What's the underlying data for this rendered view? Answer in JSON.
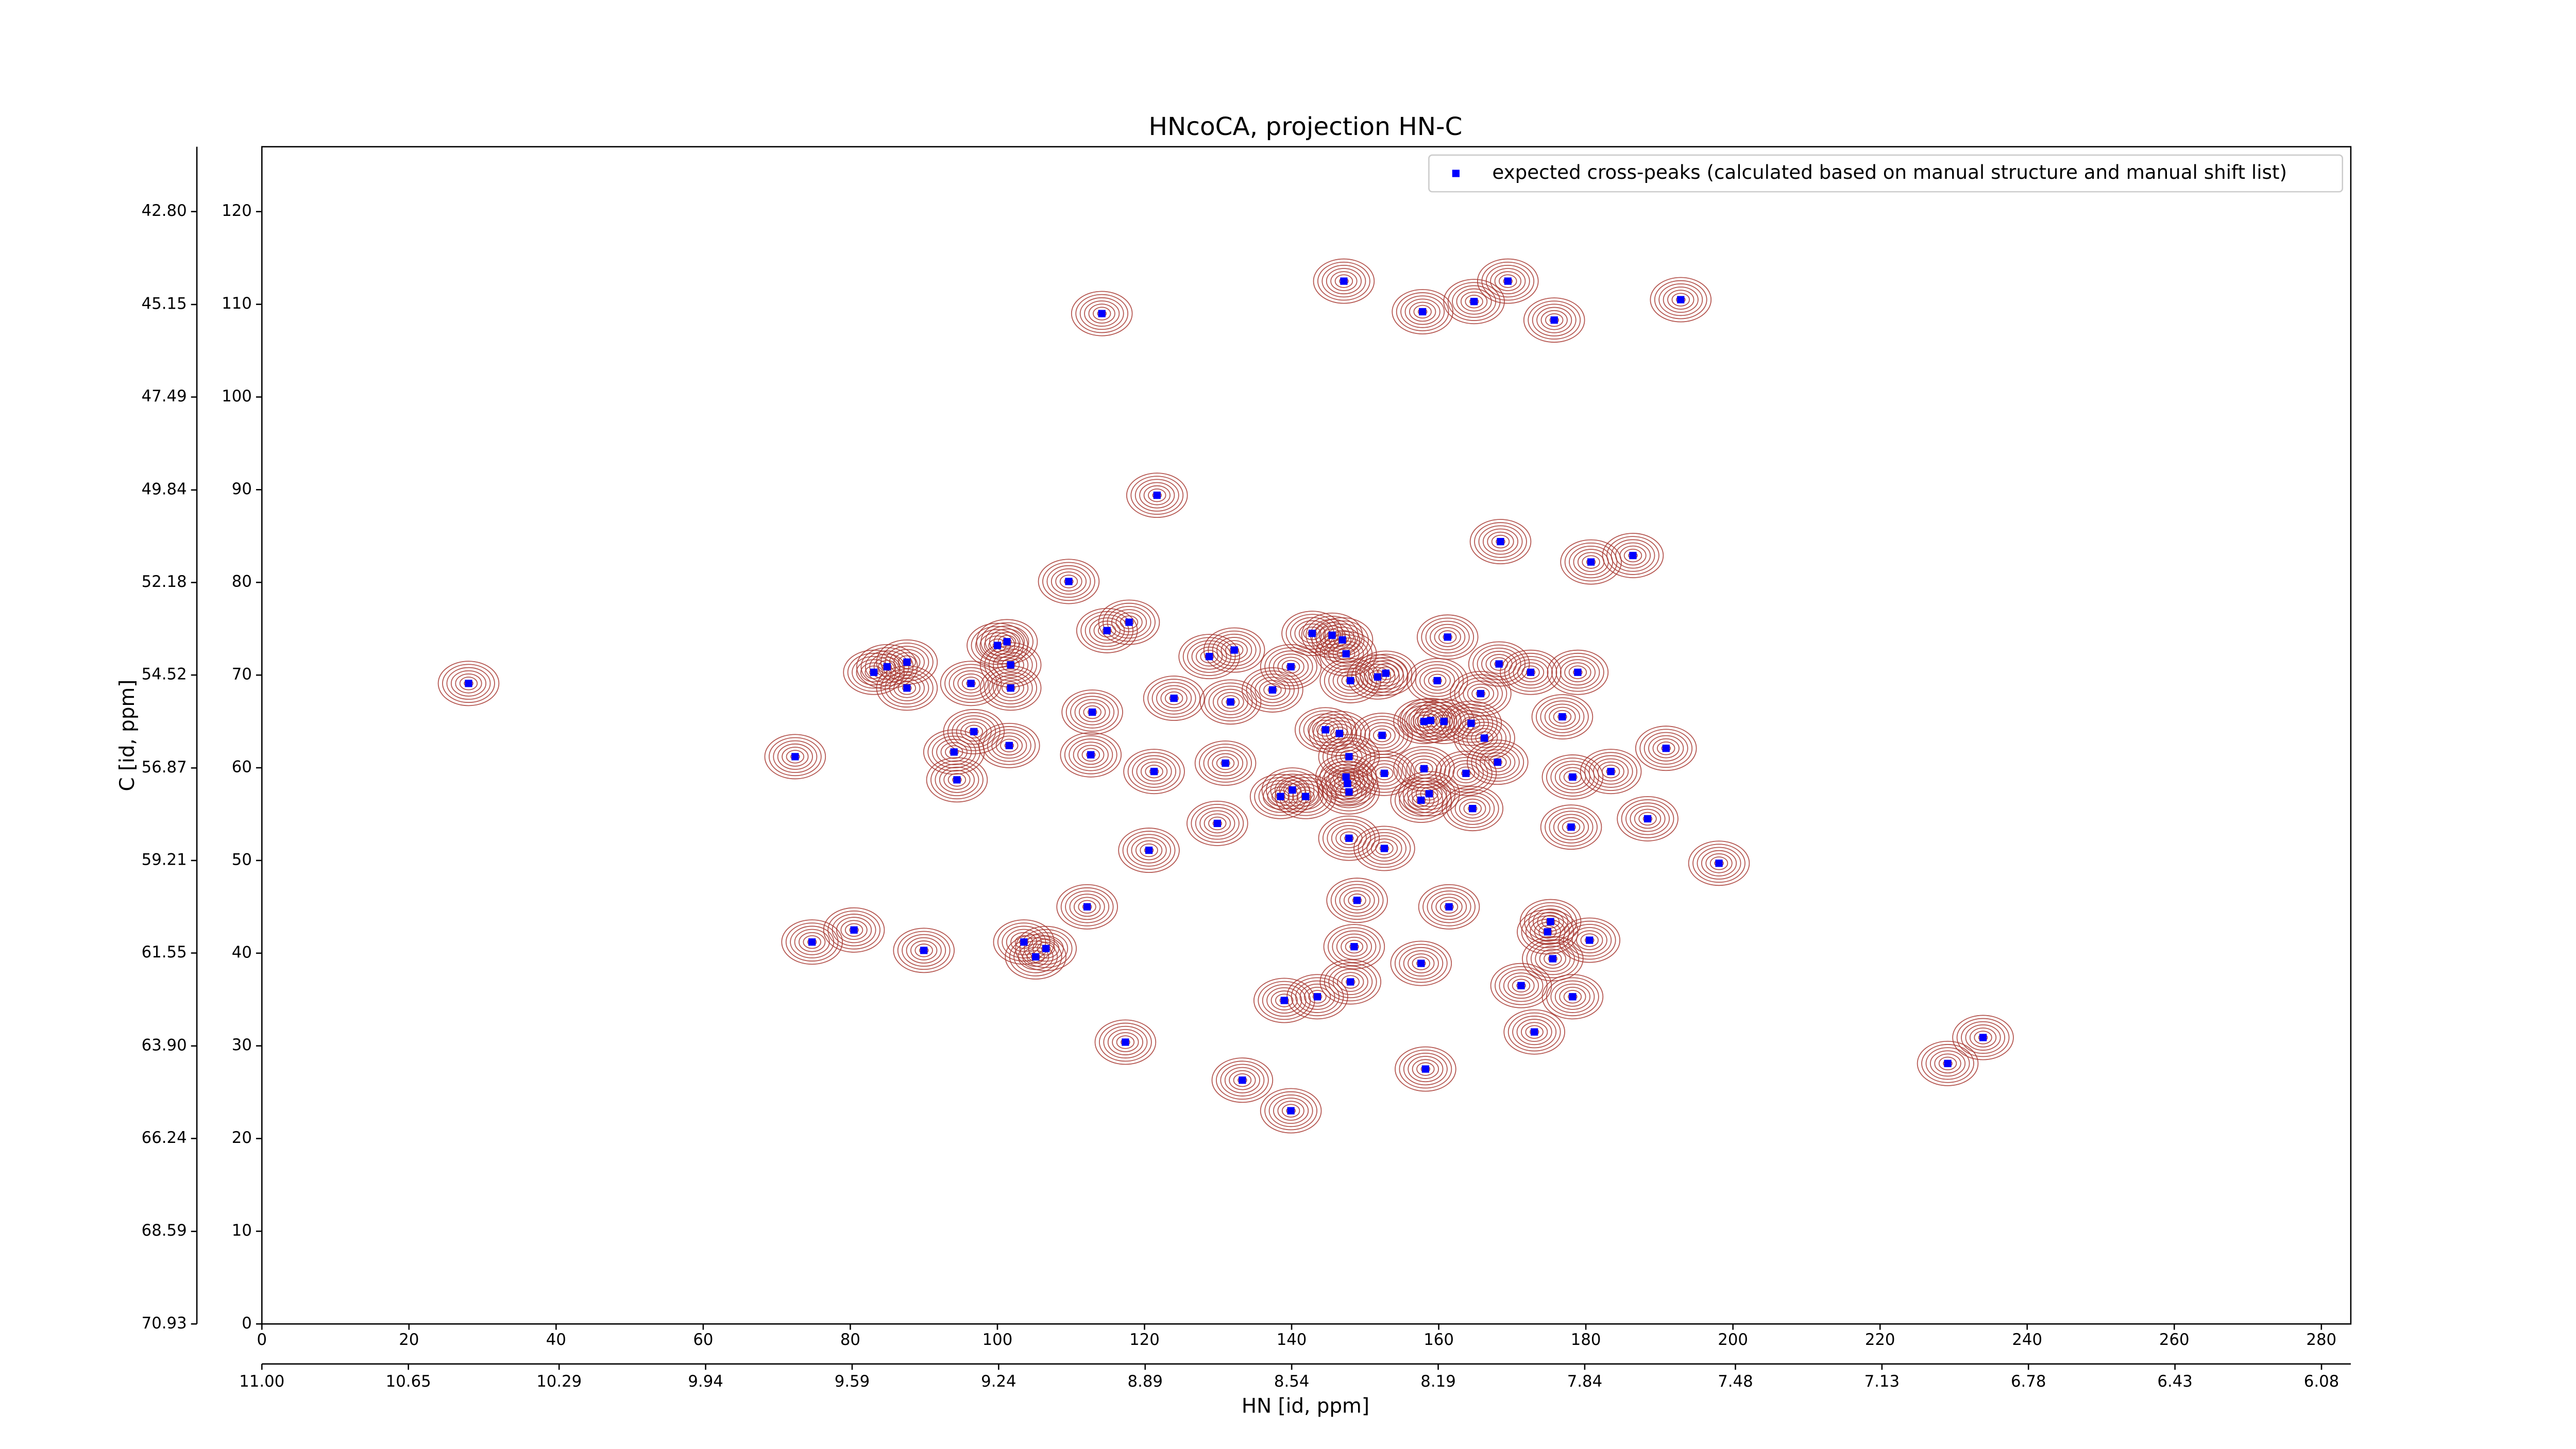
{
  "chart_data": {
    "type": "scatter",
    "title": "HNcoCA, projection HN-C",
    "xlabel": "HN [id, ppm]",
    "ylabel": "C [id, ppm]",
    "xlim": [
      0,
      284
    ],
    "ylim": [
      0,
      127
    ],
    "xticks": [
      0,
      20,
      40,
      60,
      80,
      100,
      120,
      140,
      160,
      180,
      200,
      220,
      240,
      260,
      280
    ],
    "yticks": [
      0,
      10,
      20,
      30,
      40,
      50,
      60,
      70,
      80,
      90,
      100,
      110,
      120
    ],
    "x2lim": [
      11.0,
      6.01
    ],
    "x2ticks": [
      {
        "value": 11,
        "label": "11.00"
      },
      10.65,
      10.29,
      9.94,
      9.59,
      9.24,
      8.89,
      8.54,
      8.19,
      7.84,
      7.48,
      7.13,
      6.78,
      6.43,
      6.08
    ],
    "y2lim": [
      70.93,
      41.16
    ],
    "y2ticks": [
      {
        "value": 42.8,
        "label": "42.80"
      },
      45.15,
      47.49,
      49.84,
      52.18,
      54.52,
      56.87,
      59.21,
      61.55,
      {
        "value": 63.9,
        "label": "63.90"
      },
      66.24,
      68.59,
      70.93
    ],
    "legend": "upper right",
    "contour_color": "#a83a32",
    "series": [
      {
        "name": "expected cross-peaks (calculated based on manual structure and manual shift list)",
        "color": "#0000ff",
        "x": [
          28.1,
          72.5,
          74.8,
          80.5,
          90.0,
          103.6,
          105.2,
          106.6,
          112.2,
          109.7,
          114.2,
          114.9,
          117.9,
          121.7,
          101.3,
          100.0,
          101.8,
          101.8,
          83.2,
          85.0,
          87.7,
          87.7,
          96.4,
          101.6,
          96.8,
          94.1,
          94.5,
          112.9,
          112.7,
          121.3,
          124.0,
          128.8,
          132.2,
          131.7,
          131.0,
          129.9,
          120.6,
          117.4,
          133.3,
          139.9,
          139.0,
          143.5,
          148.0,
          148.5,
          148.9,
          147.8,
          147.8,
          147.4,
          147.6,
          147.8,
          146.5,
          144.6,
          141.9,
          140.1,
          138.5,
          137.4,
          139.9,
          142.8,
          145.5,
          146.9,
          147.4,
          148.0,
          151.7,
          152.8,
          152.3,
          152.6,
          152.6,
          158.0,
          157.6,
          158.7,
          158.0,
          158.9,
          160.7,
          159.8,
          164.4,
          165.7,
          166.2,
          168.0,
          163.7,
          164.6,
          161.4,
          157.6,
          158.2,
          171.2,
          175.2,
          174.8,
          175.5,
          180.5,
          178.2,
          173.0,
          178.0,
          178.2,
          183.4,
          188.4,
          190.9,
          176.8,
          178.9,
          172.5,
          168.2,
          161.2,
          147.1,
          157.8,
          164.8,
          169.4,
          175.7,
          192.9,
          180.7,
          186.4,
          168.4,
          198.1,
          229.2,
          234.0
        ],
        "y": [
          69.1,
          61.2,
          41.2,
          42.5,
          40.3,
          41.2,
          39.6,
          40.5,
          45.0,
          80.1,
          109.0,
          74.8,
          75.7,
          89.4,
          73.6,
          73.2,
          71.1,
          68.6,
          70.3,
          70.9,
          71.4,
          68.6,
          69.1,
          62.4,
          63.9,
          61.7,
          58.7,
          66.0,
          61.4,
          59.6,
          67.5,
          72.0,
          72.7,
          67.1,
          60.5,
          54.0,
          51.1,
          30.4,
          26.3,
          23.0,
          34.9,
          35.3,
          36.9,
          40.7,
          45.7,
          52.4,
          57.4,
          59.0,
          58.3,
          61.2,
          63.7,
          64.1,
          56.9,
          57.6,
          56.9,
          68.4,
          70.9,
          74.5,
          74.3,
          73.8,
          72.3,
          69.4,
          69.8,
          70.2,
          63.5,
          59.4,
          51.3,
          59.9,
          56.5,
          57.2,
          65.0,
          65.1,
          65.0,
          69.4,
          64.8,
          68.0,
          63.2,
          60.6,
          59.4,
          55.6,
          45.0,
          38.9,
          27.5,
          36.5,
          43.4,
          42.3,
          39.4,
          41.4,
          35.3,
          31.5,
          53.6,
          59.0,
          59.6,
          54.5,
          62.1,
          65.5,
          70.3,
          70.3,
          71.2,
          74.1,
          112.5,
          109.2,
          110.3,
          112.5,
          108.3,
          110.5,
          82.2,
          82.9,
          84.4,
          49.7,
          28.1,
          30.9
        ]
      }
    ]
  }
}
